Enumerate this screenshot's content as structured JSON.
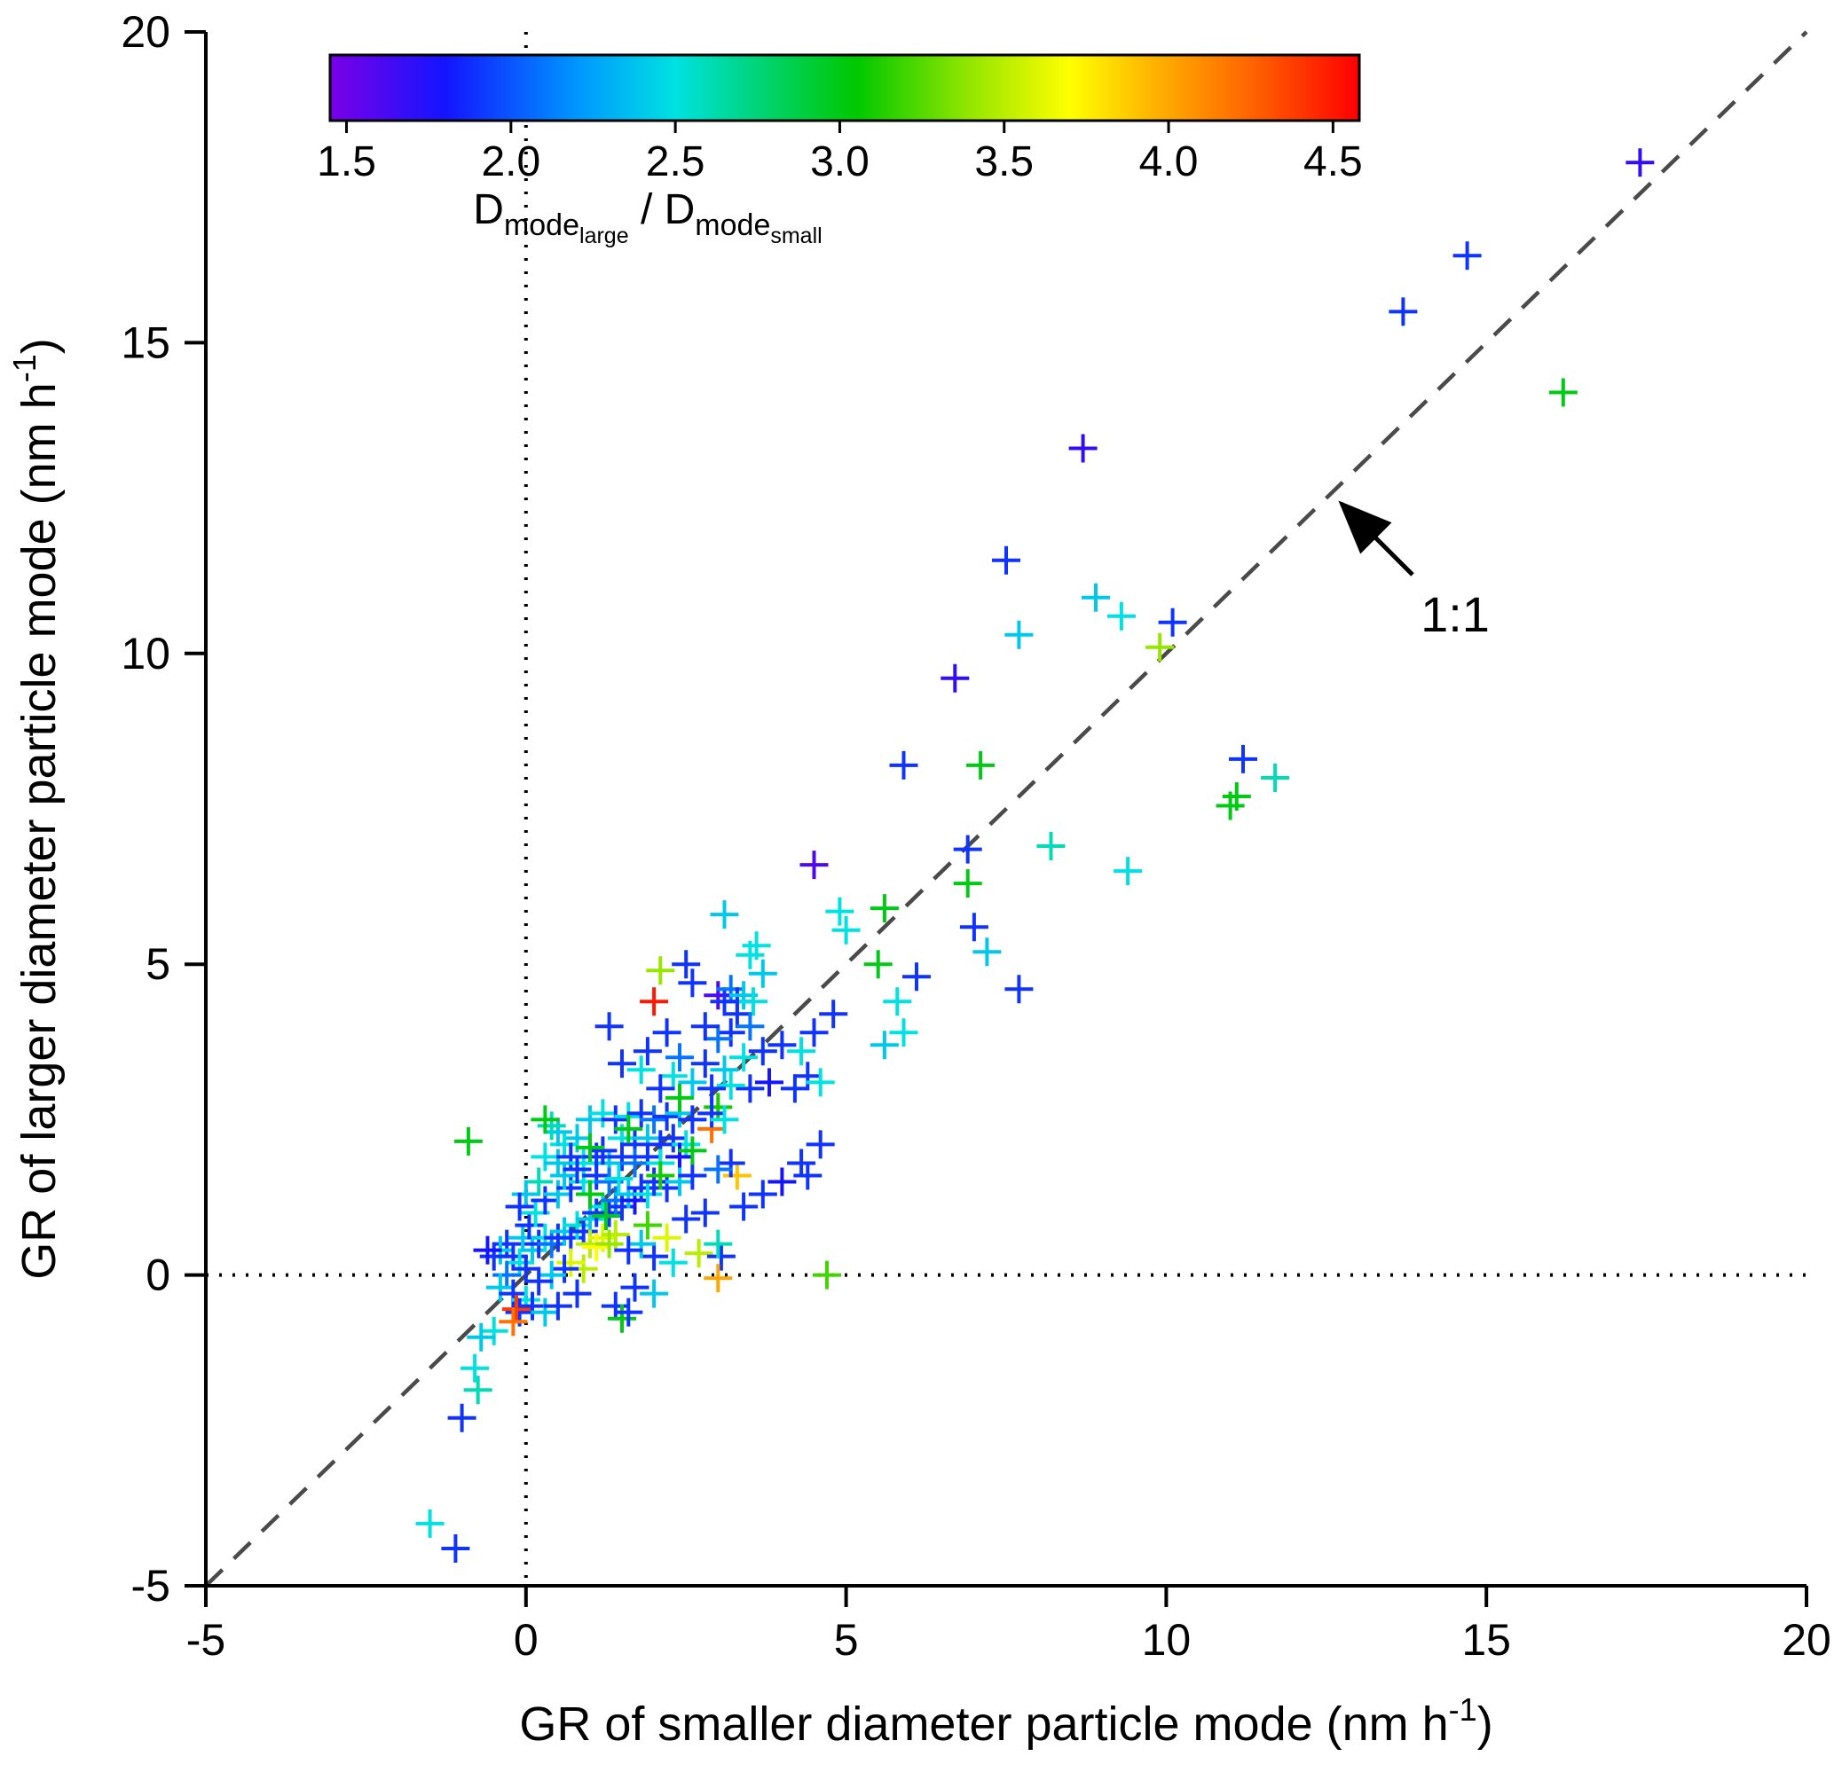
{
  "chart_data": {
    "type": "scatter",
    "marker": "plus",
    "xlabel_parts": {
      "main": "GR of smaller diameter particle mode (nm h",
      "sup": "-1",
      "close": ")"
    },
    "ylabel_parts": {
      "main": "GR of larger diameter particle mode (nm h",
      "sup": "-1",
      "close": ")"
    },
    "xlim": [
      -5,
      20
    ],
    "ylim": [
      -5,
      20
    ],
    "x_tick_values": [
      -5,
      0,
      5,
      10,
      15,
      20
    ],
    "y_tick_values": [
      -5,
      0,
      5,
      10,
      15,
      20
    ],
    "x_tick_labels": [
      "-5",
      "0",
      "5",
      "10",
      "15",
      "20"
    ],
    "y_tick_labels": [
      "-5",
      "0",
      "5",
      "10",
      "15",
      "20"
    ],
    "grid": false,
    "annotation": {
      "text": "1:1"
    },
    "reference_lines": {
      "one_to_one": {
        "style": "dashed",
        "from": [
          -5,
          -5
        ],
        "to": [
          20,
          20
        ],
        "color": "#4a4a4a"
      },
      "vertical_zero": {
        "style": "dotted",
        "x": 0,
        "color": "#000000"
      },
      "horizontal_zero": {
        "style": "dotted",
        "y": 0,
        "color": "#000000"
      }
    },
    "colorbar": {
      "label_parts": [
        {
          "t": "D",
          "l": 0
        },
        {
          "t": "mode",
          "l": 1
        },
        {
          "t": "large",
          "l": 2
        },
        {
          "t": " / ",
          "l": 0
        },
        {
          "t": "D",
          "l": 0
        },
        {
          "t": "mode",
          "l": 1
        },
        {
          "t": "small",
          "l": 2
        }
      ],
      "ticks": [
        "1.5",
        "2.0",
        "2.5",
        "3.0",
        "3.5",
        "4.0",
        "4.5"
      ],
      "tick_values": [
        1.5,
        2.0,
        2.5,
        3.0,
        3.5,
        4.0,
        4.5
      ],
      "range": [
        1.45,
        4.58
      ],
      "stops": [
        [
          1.45,
          "#7a00e6"
        ],
        [
          1.8,
          "#1414ff"
        ],
        [
          2.2,
          "#0096ff"
        ],
        [
          2.5,
          "#00e1e1"
        ],
        [
          2.8,
          "#00d264"
        ],
        [
          3.05,
          "#00c800"
        ],
        [
          3.4,
          "#96e600"
        ],
        [
          3.7,
          "#ffff00"
        ],
        [
          3.95,
          "#ffb400"
        ],
        [
          4.25,
          "#ff6400"
        ],
        [
          4.58,
          "#ff0000"
        ]
      ]
    },
    "points": [
      [
        17.4,
        17.9,
        1.7
      ],
      [
        14.7,
        16.4,
        1.9
      ],
      [
        13.7,
        15.5,
        1.9
      ],
      [
        16.2,
        14.2,
        3.0
      ],
      [
        8.7,
        13.3,
        1.7
      ],
      [
        7.5,
        11.5,
        1.9
      ],
      [
        8.9,
        10.9,
        2.4
      ],
      [
        9.3,
        10.6,
        2.5
      ],
      [
        10.1,
        10.5,
        1.9
      ],
      [
        7.7,
        10.3,
        2.4
      ],
      [
        9.9,
        10.1,
        3.4
      ],
      [
        6.7,
        9.6,
        1.7
      ],
      [
        5.9,
        8.2,
        1.9
      ],
      [
        7.1,
        8.2,
        3.0
      ],
      [
        11.2,
        8.3,
        1.9
      ],
      [
        11.7,
        8.0,
        2.6
      ],
      [
        11.1,
        7.7,
        3.0
      ],
      [
        11.0,
        7.55,
        3.0
      ],
      [
        8.2,
        6.9,
        2.6
      ],
      [
        6.9,
        6.85,
        1.9
      ],
      [
        9.4,
        6.5,
        2.5
      ],
      [
        4.5,
        6.6,
        1.6
      ],
      [
        6.9,
        6.3,
        3.0
      ],
      [
        7.0,
        5.6,
        1.9
      ],
      [
        7.2,
        5.2,
        2.4
      ],
      [
        5.6,
        5.9,
        3.0
      ],
      [
        4.9,
        5.85,
        2.5
      ],
      [
        5.0,
        5.55,
        2.5
      ],
      [
        3.1,
        5.8,
        2.4
      ],
      [
        3.6,
        5.3,
        2.5
      ],
      [
        3.5,
        5.15,
        2.5
      ],
      [
        3.7,
        4.85,
        2.4
      ],
      [
        5.5,
        5.0,
        3.0
      ],
      [
        6.1,
        4.8,
        1.9
      ],
      [
        7.7,
        4.6,
        1.9
      ],
      [
        5.8,
        4.4,
        2.5
      ],
      [
        5.9,
        3.9,
        2.5
      ],
      [
        5.6,
        3.7,
        2.4
      ],
      [
        4.8,
        4.2,
        1.9
      ],
      [
        4.5,
        3.9,
        1.9
      ],
      [
        2.1,
        4.9,
        3.4
      ],
      [
        2.5,
        5.0,
        1.9
      ],
      [
        2.0,
        4.4,
        4.5
      ],
      [
        2.6,
        4.7,
        1.9
      ],
      [
        3.0,
        4.5,
        1.6
      ],
      [
        3.1,
        4.4,
        1.9
      ],
      [
        3.2,
        4.6,
        2.1
      ],
      [
        3.3,
        4.4,
        1.9
      ],
      [
        3.4,
        4.5,
        2.4
      ],
      [
        3.3,
        4.2,
        1.9
      ],
      [
        3.55,
        4.4,
        2.5
      ],
      [
        3.5,
        4.0,
        2.1
      ],
      [
        3.2,
        3.9,
        1.9
      ],
      [
        3.0,
        3.8,
        2.1
      ],
      [
        2.8,
        4.0,
        1.9
      ],
      [
        2.2,
        3.9,
        1.9
      ],
      [
        1.9,
        3.6,
        1.9
      ],
      [
        2.4,
        3.5,
        2.1
      ],
      [
        2.8,
        3.4,
        1.9
      ],
      [
        3.1,
        3.3,
        2.4
      ],
      [
        3.4,
        3.5,
        2.5
      ],
      [
        3.7,
        3.6,
        1.9
      ],
      [
        4.0,
        3.7,
        1.9
      ],
      [
        4.3,
        3.6,
        2.5
      ],
      [
        4.4,
        3.2,
        1.9
      ],
      [
        4.6,
        3.1,
        2.5
      ],
      [
        4.2,
        3.0,
        1.9
      ],
      [
        3.8,
        3.1,
        1.8
      ],
      [
        3.5,
        3.0,
        1.9
      ],
      [
        3.2,
        3.05,
        2.5
      ],
      [
        2.9,
        3.0,
        1.9
      ],
      [
        2.6,
        3.1,
        2.4
      ],
      [
        2.3,
        3.2,
        2.5
      ],
      [
        2.1,
        3.0,
        1.9
      ],
      [
        1.8,
        3.3,
        2.5
      ],
      [
        1.5,
        3.4,
        1.9
      ],
      [
        1.3,
        4.0,
        1.9
      ],
      [
        3.0,
        2.7,
        3.1
      ],
      [
        2.9,
        2.35,
        4.2
      ],
      [
        3.3,
        1.6,
        3.9
      ],
      [
        1.0,
        2.5,
        2.4
      ],
      [
        1.2,
        2.6,
        2.5
      ],
      [
        1.4,
        2.5,
        1.9
      ],
      [
        1.6,
        2.55,
        2.5
      ],
      [
        1.8,
        2.6,
        1.9
      ],
      [
        2.0,
        2.5,
        2.1
      ],
      [
        2.2,
        2.55,
        1.9
      ],
      [
        2.4,
        2.6,
        2.4
      ],
      [
        2.6,
        2.5,
        1.9
      ],
      [
        2.9,
        2.6,
        1.9
      ],
      [
        3.1,
        2.5,
        2.5
      ],
      [
        1.5,
        2.2,
        2.5
      ],
      [
        1.7,
        2.1,
        1.9
      ],
      [
        1.9,
        2.2,
        2.4
      ],
      [
        2.1,
        2.1,
        1.9
      ],
      [
        2.3,
        2.2,
        1.9
      ],
      [
        2.5,
        2.1,
        2.5
      ],
      [
        0.8,
        2.2,
        2.4
      ],
      [
        0.6,
        2.1,
        2.5
      ],
      [
        0.5,
        2.3,
        2.4
      ],
      [
        0.4,
        2.4,
        2.6
      ],
      [
        -0.9,
        2.15,
        3.0
      ],
      [
        0.3,
        1.9,
        2.5
      ],
      [
        0.5,
        1.8,
        2.4
      ],
      [
        0.7,
        1.9,
        1.9
      ],
      [
        0.9,
        1.8,
        2.5
      ],
      [
        1.1,
        1.9,
        1.9
      ],
      [
        1.3,
        1.8,
        2.4
      ],
      [
        1.5,
        1.9,
        1.9
      ],
      [
        1.7,
        1.8,
        2.1
      ],
      [
        1.9,
        1.9,
        1.9
      ],
      [
        2.1,
        1.8,
        2.5
      ],
      [
        2.4,
        1.9,
        1.8
      ],
      [
        3.2,
        1.8,
        1.9
      ],
      [
        3.0,
        1.7,
        2.1
      ],
      [
        3.4,
        1.1,
        1.9
      ],
      [
        3.7,
        1.3,
        1.9
      ],
      [
        4.0,
        1.5,
        1.8
      ],
      [
        4.3,
        1.8,
        1.9
      ],
      [
        4.6,
        2.1,
        1.9
      ],
      [
        4.4,
        1.6,
        1.9
      ],
      [
        0.1,
        0.4,
        2.4
      ],
      [
        0.2,
        0.5,
        1.9
      ],
      [
        0.3,
        0.6,
        2.5
      ],
      [
        0.4,
        0.5,
        2.1
      ],
      [
        0.5,
        0.6,
        1.9
      ],
      [
        0.6,
        0.7,
        2.4
      ],
      [
        0.7,
        0.6,
        1.9
      ],
      [
        0.8,
        0.8,
        2.5
      ],
      [
        0.9,
        0.7,
        1.9
      ],
      [
        1.0,
        0.9,
        2.4
      ],
      [
        1.1,
        1.0,
        1.9
      ],
      [
        1.2,
        1.1,
        2.5
      ],
      [
        1.3,
        1.0,
        1.9
      ],
      [
        1.4,
        1.2,
        2.1
      ],
      [
        1.5,
        1.1,
        1.9
      ],
      [
        1.6,
        1.3,
        2.4
      ],
      [
        1.7,
        1.2,
        1.8
      ],
      [
        1.8,
        1.4,
        1.9
      ],
      [
        1.9,
        1.3,
        2.5
      ],
      [
        2.0,
        1.5,
        1.9
      ],
      [
        2.2,
        1.4,
        1.9
      ],
      [
        2.4,
        1.5,
        2.4
      ],
      [
        2.6,
        1.6,
        1.9
      ],
      [
        1.0,
        0.5,
        3.5
      ],
      [
        1.2,
        0.6,
        3.6
      ],
      [
        1.4,
        0.65,
        3.5
      ],
      [
        1.1,
        0.45,
        3.7
      ],
      [
        1.3,
        0.5,
        3.4
      ],
      [
        2.2,
        0.6,
        3.6
      ],
      [
        2.7,
        0.35,
        3.5
      ],
      [
        1.9,
        0.8,
        3.2
      ],
      [
        2.1,
        1.6,
        3.1
      ],
      [
        2.5,
        0.9,
        1.9
      ],
      [
        2.8,
        1.0,
        1.9
      ],
      [
        3.05,
        0.3,
        1.9
      ],
      [
        3.0,
        -0.05,
        4.0
      ],
      [
        4.7,
        0.0,
        3.2
      ],
      [
        3.0,
        0.5,
        2.6
      ],
      [
        -0.3,
        0.5,
        1.9
      ],
      [
        -0.4,
        0.4,
        2.4
      ],
      [
        -0.2,
        0.3,
        1.9
      ],
      [
        -0.1,
        0.2,
        2.5
      ],
      [
        0.0,
        0.1,
        1.9
      ],
      [
        -0.3,
        0.0,
        2.1
      ],
      [
        -0.5,
        0.3,
        1.9
      ],
      [
        -0.6,
        0.4,
        1.8
      ],
      [
        -0.4,
        -0.2,
        2.4
      ],
      [
        -0.2,
        -0.3,
        1.9
      ],
      [
        0.0,
        -0.4,
        2.5
      ],
      [
        -0.1,
        -0.6,
        1.9
      ],
      [
        -0.15,
        -0.55,
        4.4
      ],
      [
        -0.2,
        -0.75,
        4.2
      ],
      [
        0.1,
        -0.5,
        1.9
      ],
      [
        0.3,
        -0.6,
        2.4
      ],
      [
        0.5,
        -0.5,
        1.9
      ],
      [
        -0.5,
        -0.9,
        2.5
      ],
      [
        -0.7,
        -1.0,
        2.4
      ],
      [
        1.4,
        -0.5,
        1.9
      ],
      [
        1.5,
        -0.7,
        3.0
      ],
      [
        1.6,
        -0.6,
        1.9
      ],
      [
        -0.8,
        -1.5,
        2.5
      ],
      [
        -0.75,
        -1.85,
        2.6
      ],
      [
        -1.0,
        -2.3,
        1.9
      ],
      [
        -1.5,
        -4.0,
        2.5
      ],
      [
        -1.1,
        -4.4,
        1.9
      ],
      [
        0.8,
        -0.3,
        1.9
      ],
      [
        0.9,
        0.1,
        3.5
      ],
      [
        0.7,
        0.2,
        3.6
      ],
      [
        0.6,
        0.1,
        1.9
      ],
      [
        0.4,
        0.0,
        2.4
      ],
      [
        0.2,
        -0.1,
        1.9
      ],
      [
        -0.05,
        0.6,
        2.4
      ],
      [
        0.05,
        0.8,
        1.9
      ],
      [
        0.15,
        1.0,
        2.5
      ],
      [
        0.3,
        1.2,
        1.9
      ],
      [
        0.5,
        1.3,
        2.4
      ],
      [
        0.7,
        1.4,
        1.9
      ],
      [
        0.9,
        1.5,
        2.5
      ],
      [
        1.1,
        1.6,
        1.9
      ],
      [
        1.3,
        1.5,
        2.1
      ],
      [
        0.2,
        1.5,
        2.6
      ],
      [
        0.0,
        1.3,
        2.4
      ],
      [
        -0.1,
        1.1,
        1.9
      ],
      [
        0.6,
        1.6,
        2.4
      ],
      [
        0.8,
        1.7,
        1.9
      ],
      [
        1.0,
        1.3,
        3.0
      ],
      [
        1.2,
        2.0,
        1.9
      ],
      [
        1.45,
        1.55,
        2.5
      ],
      [
        2.0,
        0.3,
        1.9
      ],
      [
        2.3,
        0.2,
        2.5
      ],
      [
        1.8,
        0.5,
        2.4
      ],
      [
        1.6,
        0.4,
        1.9
      ],
      [
        1.7,
        -0.2,
        1.9
      ],
      [
        2.0,
        -0.3,
        2.4
      ],
      [
        0.3,
        2.5,
        3.0
      ],
      [
        1.6,
        2.35,
        3.0
      ],
      [
        2.4,
        2.85,
        3.0
      ],
      [
        1.25,
        0.95,
        3.0
      ],
      [
        2.6,
        2.0,
        3.0
      ],
      [
        1.0,
        2.05,
        3.0
      ]
    ]
  }
}
